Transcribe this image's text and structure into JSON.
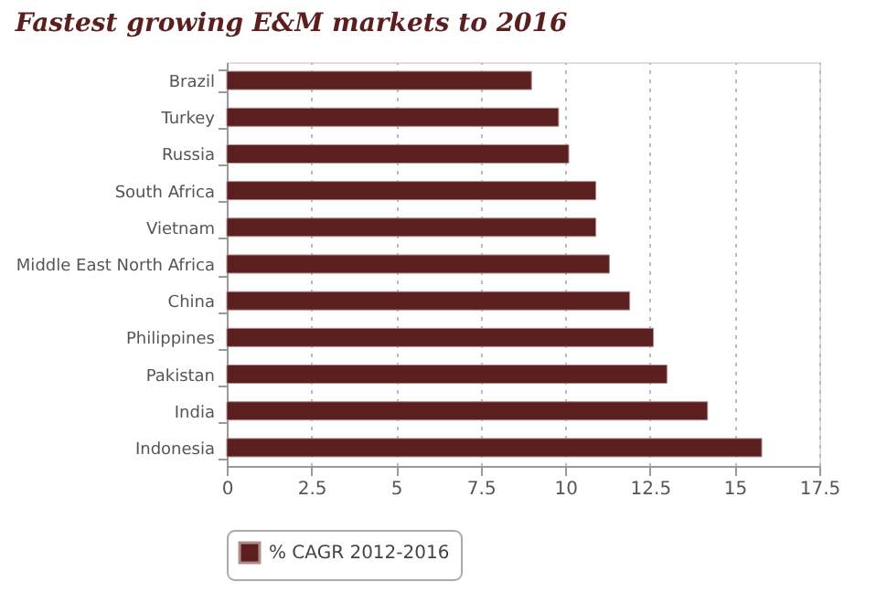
{
  "chart_data": {
    "type": "bar",
    "orientation": "horizontal",
    "title": "Fastest growing E&M markets to 2016",
    "categories": [
      "Brazil",
      "Turkey",
      "Russia",
      "South Africa",
      "Vietnam",
      "Middle East North Africa",
      "China",
      "Philippines",
      "Pakistan",
      "India",
      "Indonesia"
    ],
    "series": [
      {
        "name": "% CAGR 2012-2016",
        "color": "#5c1f1f",
        "values": [
          9.0,
          9.8,
          10.1,
          10.9,
          10.9,
          11.3,
          11.9,
          12.6,
          13.0,
          14.2,
          15.8
        ]
      }
    ],
    "xlim": [
      0,
      17.5
    ],
    "xticks": [
      0,
      2.5,
      5,
      7.5,
      10,
      12.5,
      15,
      17.5
    ],
    "grid": "x",
    "legend": "bottom"
  }
}
